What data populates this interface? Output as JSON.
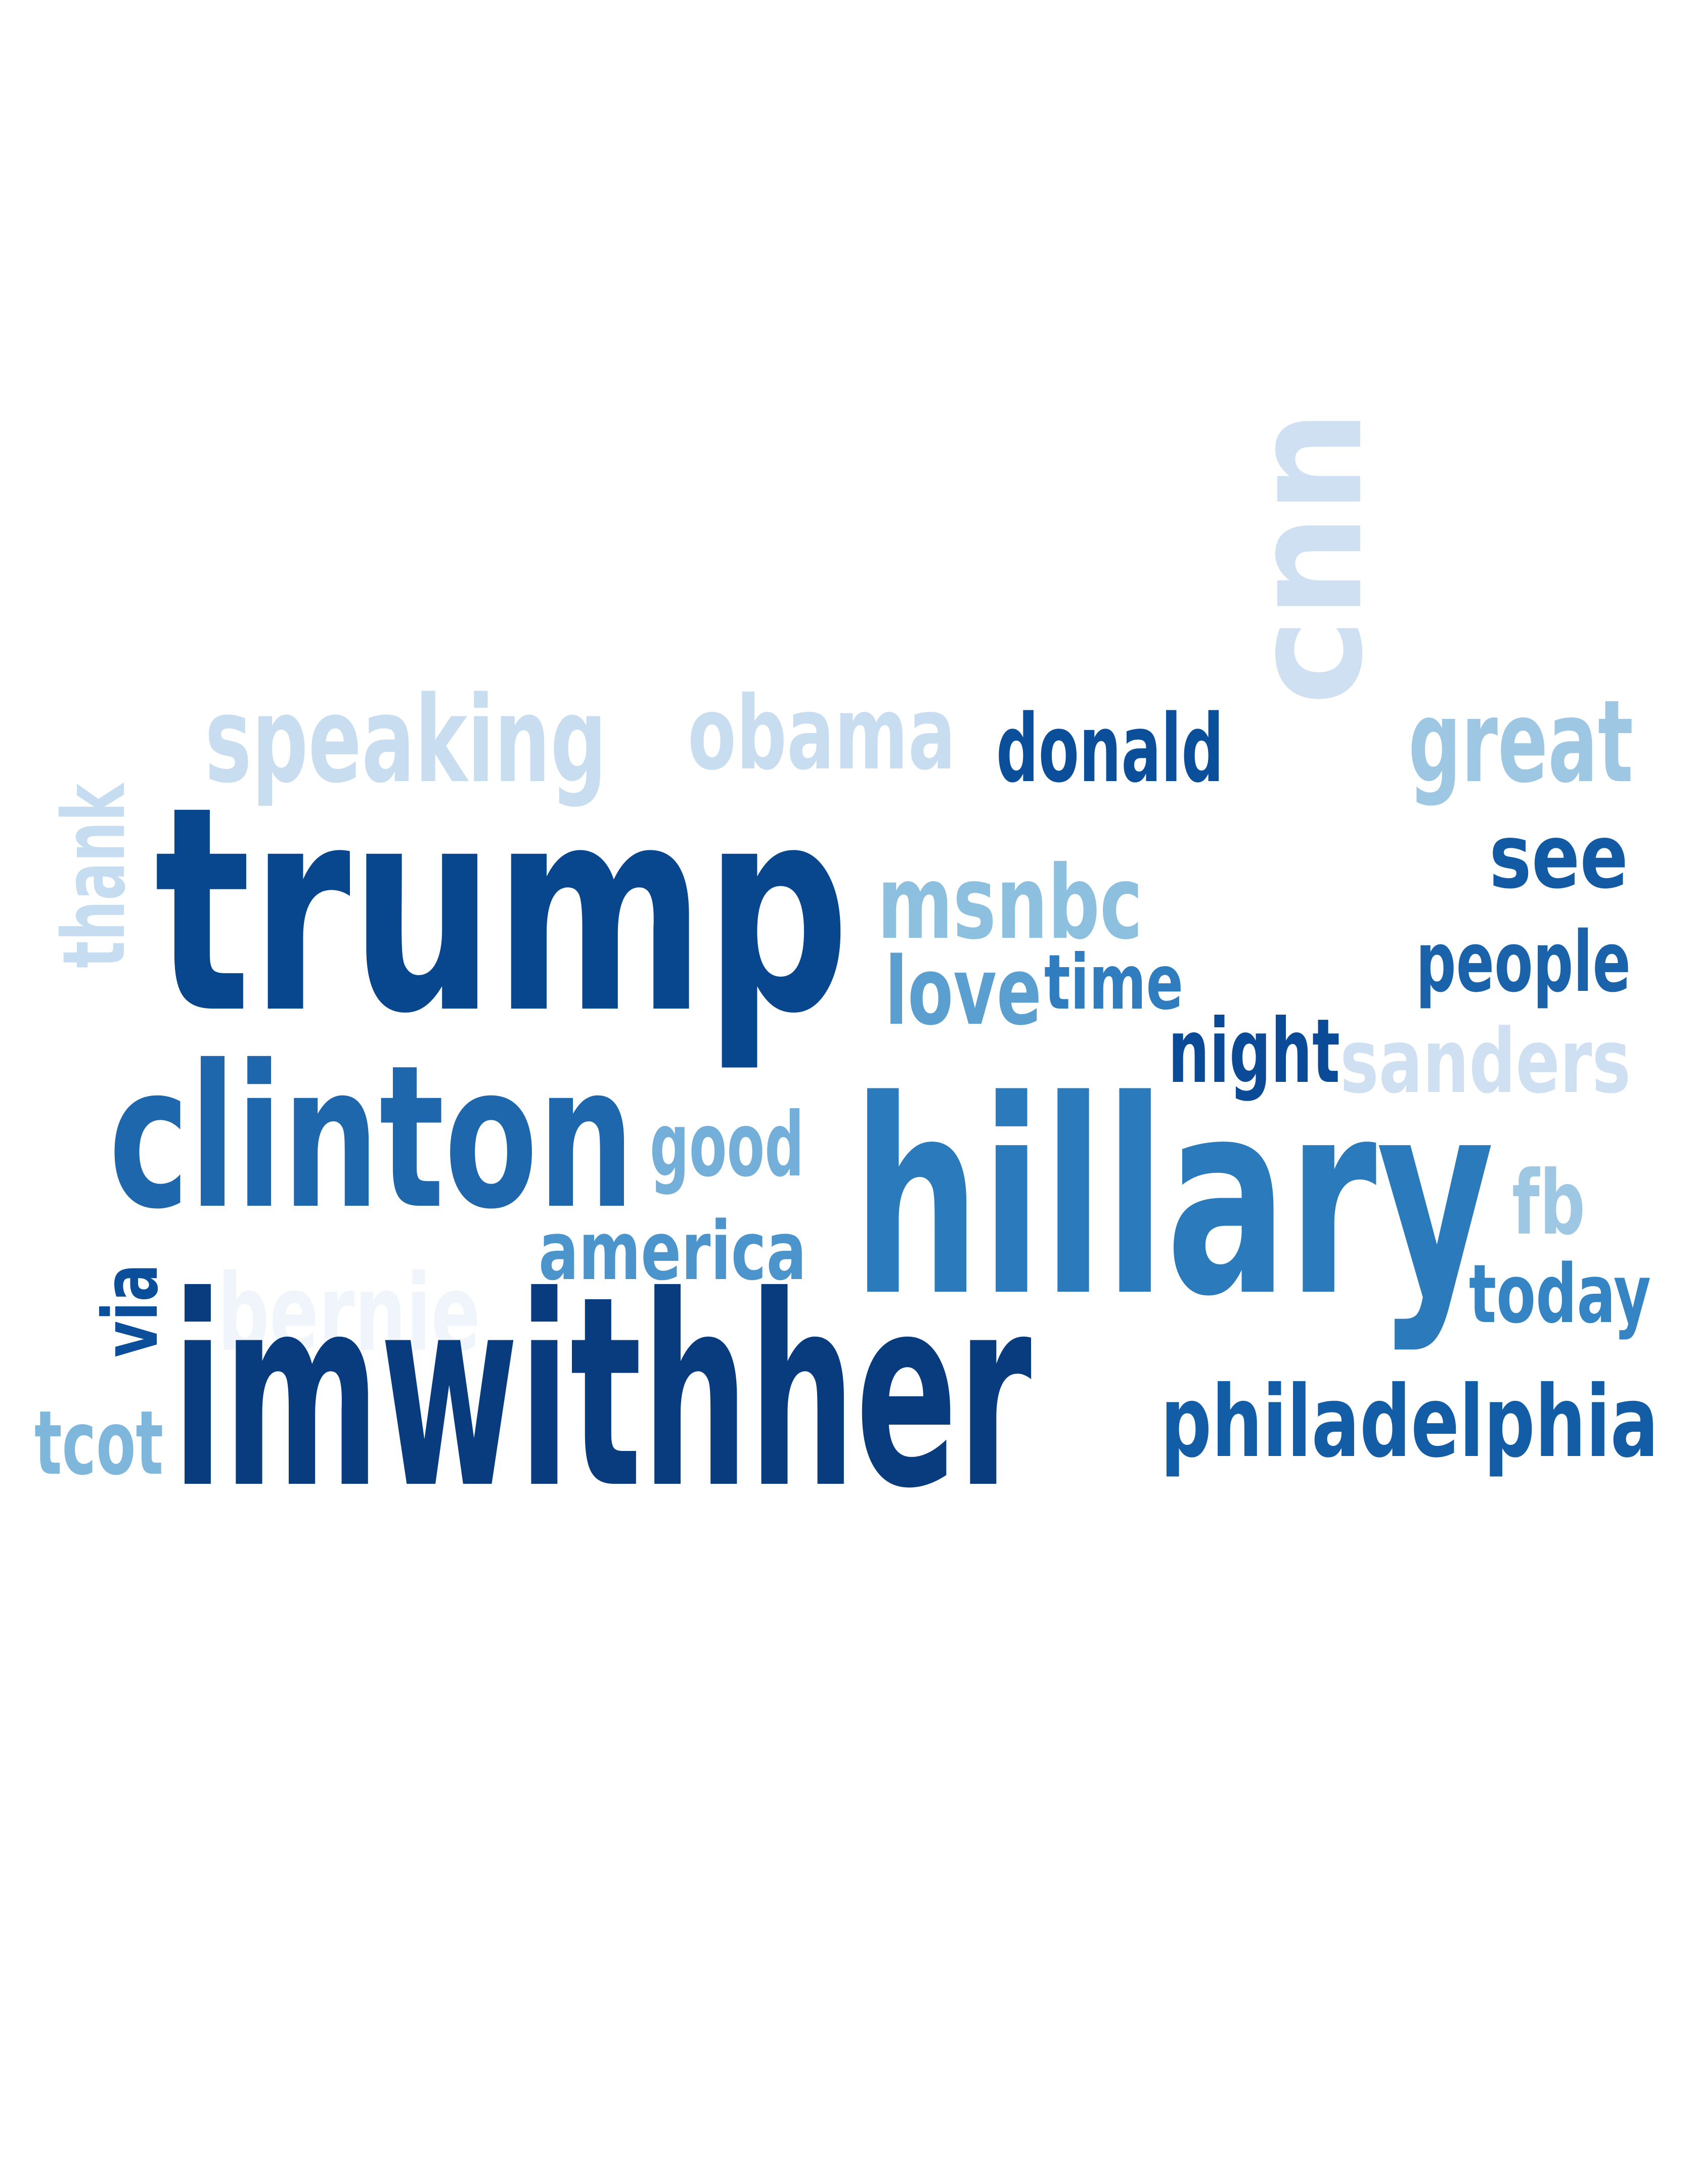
{
  "words": [
    {
      "text": "trump",
      "color": "#08468e"
    },
    {
      "text": "imwithher",
      "color": "#083c7e"
    },
    {
      "text": "hillary",
      "color": "#2a7abc"
    },
    {
      "text": "clinton",
      "color": "#1e67ad"
    },
    {
      "text": "cnn",
      "color": "#cfe0f2"
    },
    {
      "text": "speaking",
      "color": "#c9ddf0"
    },
    {
      "text": "obama",
      "color": "#c9ddf0"
    },
    {
      "text": "donald",
      "color": "#0b4f9b"
    },
    {
      "text": "great",
      "color": "#9ec7e4"
    },
    {
      "text": "see",
      "color": "#125aa3"
    },
    {
      "text": "people",
      "color": "#1a62aa"
    },
    {
      "text": "msnbc",
      "color": "#8dbfdf"
    },
    {
      "text": "love",
      "color": "#5a9fd0"
    },
    {
      "text": "time",
      "color": "#2f7cbf"
    },
    {
      "text": "night",
      "color": "#0a4a96"
    },
    {
      "text": "sanders",
      "color": "#cfe0f2"
    },
    {
      "text": "good",
      "color": "#74afda"
    },
    {
      "text": "america",
      "color": "#4b94cc"
    },
    {
      "text": "bernie",
      "color": "#f0f5fb"
    },
    {
      "text": "via",
      "color": "#0b4f9b"
    },
    {
      "text": "tcot",
      "color": "#7fb7dc"
    },
    {
      "text": "thank",
      "color": "#c6dcf0"
    },
    {
      "text": "fb",
      "color": "#9ec7e4"
    },
    {
      "text": "today",
      "color": "#3584c4"
    },
    {
      "text": "philadelphia",
      "color": "#135da6"
    }
  ]
}
